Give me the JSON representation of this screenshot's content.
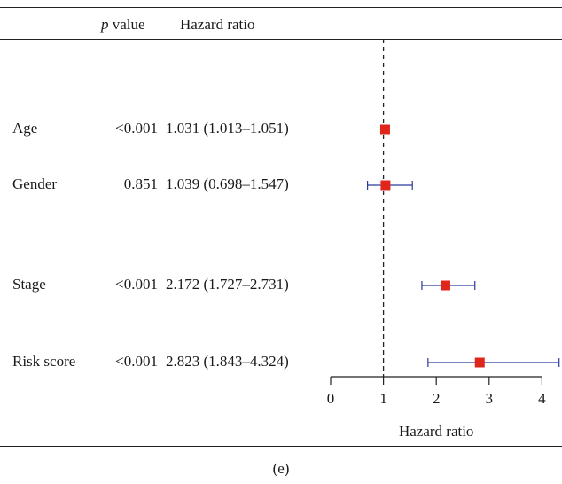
{
  "header": {
    "p_label_italic": "p",
    "p_label_rest": " value",
    "hr_label": "Hazard ratio"
  },
  "caption": "(e)",
  "colors": {
    "point": "#e0251b",
    "ci_line": "#2b3a9a",
    "axis": "#222222",
    "reference": "#222222"
  },
  "chart_data": {
    "type": "forest",
    "rows": [
      {
        "label": "Age",
        "p_value": "<0.001",
        "hr_text": "1.031 (1.013–1.051)",
        "hr": 1.031,
        "lower": 1.013,
        "upper": 1.051
      },
      {
        "label": "Gender",
        "p_value": "0.851",
        "hr_text": "1.039 (0.698–1.547)",
        "hr": 1.039,
        "lower": 0.698,
        "upper": 1.547
      },
      {
        "label": "Stage",
        "p_value": "<0.001",
        "hr_text": "2.172 (1.727–2.731)",
        "hr": 2.172,
        "lower": 1.727,
        "upper": 2.731
      },
      {
        "label": "Risk score",
        "p_value": "<0.001",
        "hr_text": "2.823 (1.843–4.324)",
        "hr": 2.823,
        "lower": 1.843,
        "upper": 4.324
      }
    ],
    "x_ticks": [
      0,
      1,
      2,
      3,
      4
    ],
    "xlim": [
      0,
      4.324
    ],
    "reference_line": 1,
    "xlabel": "Hazard ratio"
  }
}
